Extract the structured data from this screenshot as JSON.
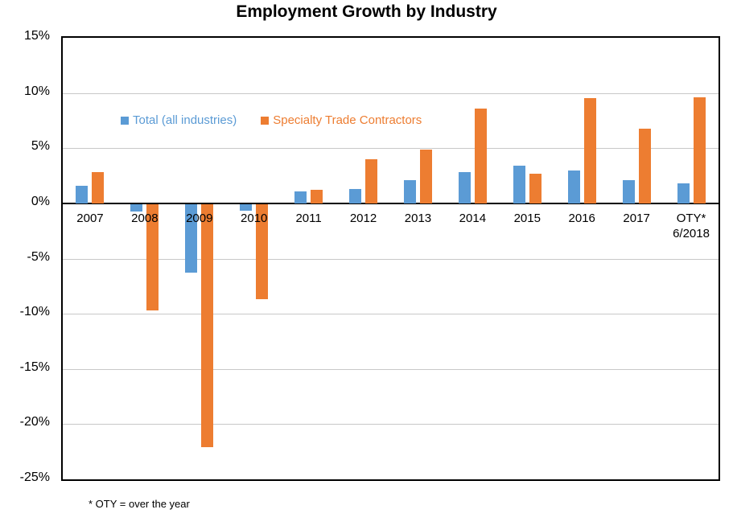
{
  "page": {
    "title": "Employment Growth by Industry",
    "footnote": "* OTY = over the year"
  },
  "chart_data": {
    "type": "bar",
    "title": "Employment Growth by Industry",
    "categories": [
      "2007",
      "2008",
      "2009",
      "2010",
      "2011",
      "2012",
      "2013",
      "2014",
      "2015",
      "2016",
      "2017",
      "OTY*\n6/2018"
    ],
    "series": [
      {
        "name": "Total (all industries)",
        "color": "#5B9BD5",
        "values": [
          1.6,
          -0.7,
          -6.2,
          -0.6,
          1.1,
          1.3,
          2.1,
          2.8,
          3.4,
          3.0,
          2.1,
          1.8
        ]
      },
      {
        "name": "Specialty Trade Contractors",
        "color": "#ED7D31",
        "values": [
          2.8,
          -9.6,
          -22.0,
          -8.6,
          1.2,
          4.0,
          4.9,
          8.6,
          2.7,
          9.5,
          6.8,
          9.6
        ]
      }
    ],
    "xlabel": "",
    "ylabel": "",
    "ylim": [
      -25,
      15
    ],
    "yticks": [
      {
        "value": 15,
        "label": "15%"
      },
      {
        "value": 10,
        "label": "10%"
      },
      {
        "value": 5,
        "label": "5%"
      },
      {
        "value": 0,
        "label": "0%"
      },
      {
        "value": -5,
        "label": "-5%"
      },
      {
        "value": -10,
        "label": "-10%"
      },
      {
        "value": -15,
        "label": "-15%"
      },
      {
        "value": -20,
        "label": "-20%"
      },
      {
        "value": -25,
        "label": "-25%"
      }
    ],
    "grid": "horizontal",
    "gridline_color": "#C8C8C8",
    "axis_color": "#000000",
    "background_color": "#FFFFFF",
    "legend_position": "inside-upper-left",
    "footnote": "* OTY = over the year"
  }
}
